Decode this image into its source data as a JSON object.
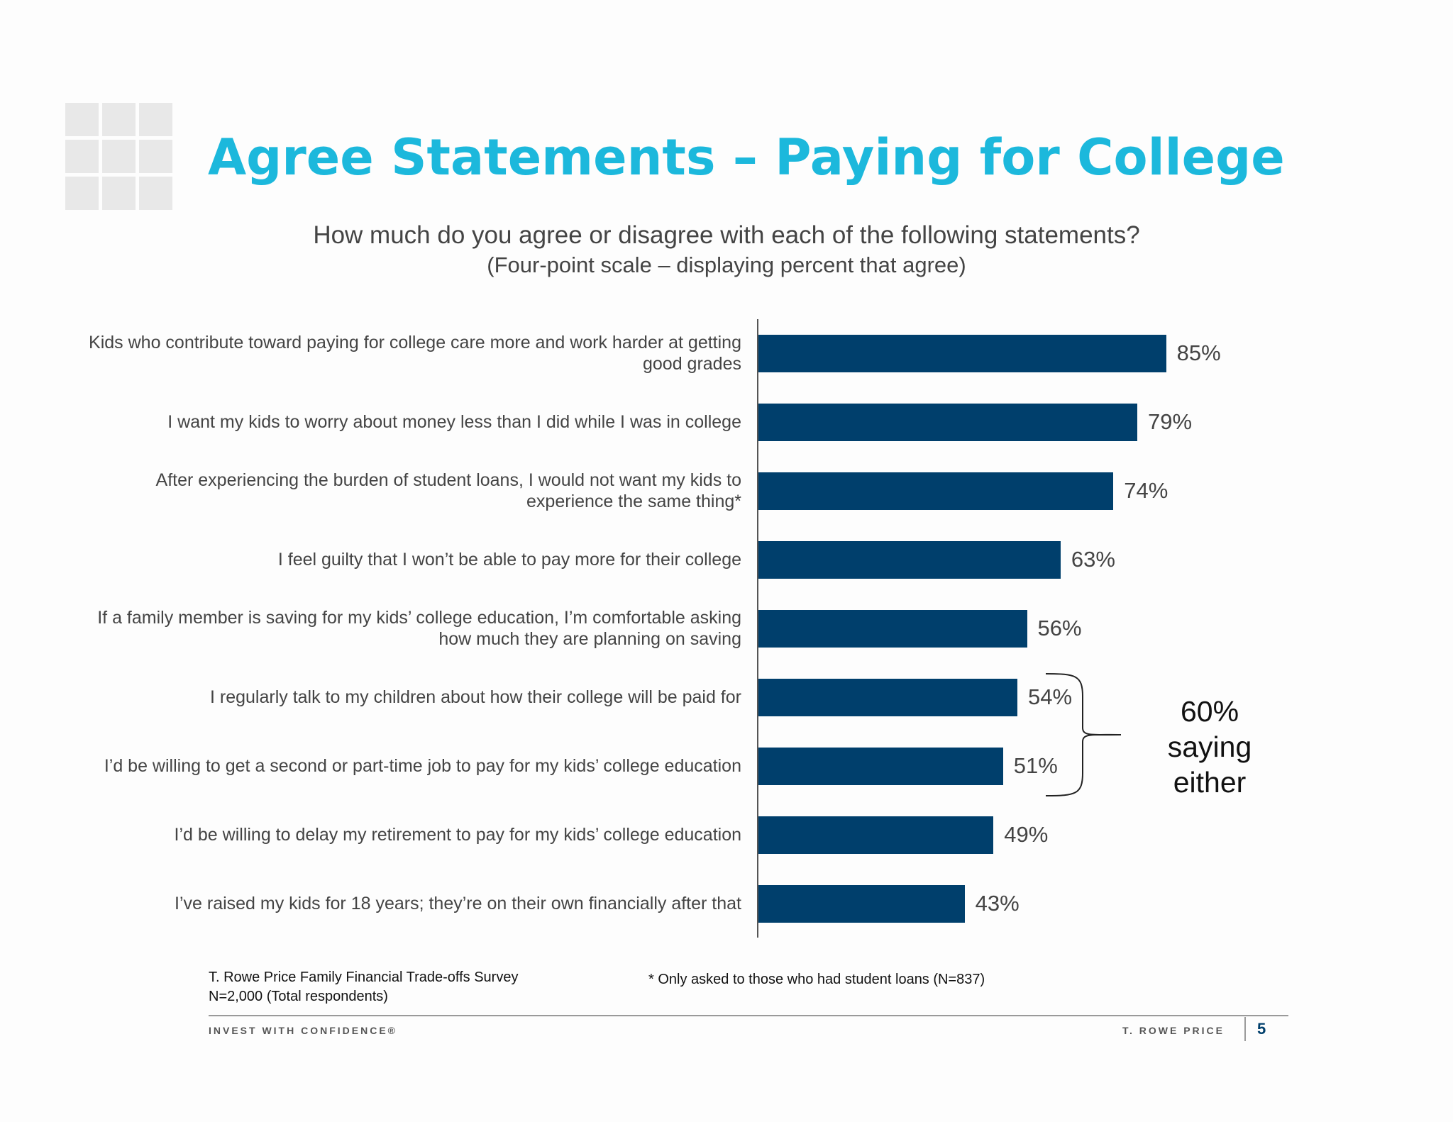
{
  "header": {
    "title": "Agree Statements – Paying for College",
    "question": "How much do you agree or disagree with each of the following statements?",
    "scale_note": "(Four-point scale – displaying percent that agree)"
  },
  "chart_data": {
    "type": "bar",
    "orientation": "horizontal",
    "categories": [
      "Kids who contribute toward paying for college care more and work harder at getting good grades",
      "I want my kids to worry about money less than I did while I was in college",
      "After experiencing the burden of student loans, I would not want my kids to experience the same thing*",
      "I feel guilty that I won’t be able to pay more for their college",
      "If a family member is saving for my kids’ college education, I’m comfortable asking how much they are planning on saving",
      "I regularly talk to my children about how their college will be paid for",
      "I’d be willing to get a second or part-time job to pay for my kids’ college education",
      "I’d be willing to delay my retirement to pay for my kids’ college education",
      "I’ve raised my kids for 18 years; they’re on their own financially after that"
    ],
    "values": [
      85,
      79,
      74,
      63,
      56,
      54,
      51,
      49,
      43
    ],
    "value_labels": [
      "85%",
      "79%",
      "74%",
      "63%",
      "56%",
      "54%",
      "51%",
      "49%",
      "43%"
    ],
    "unit": "%",
    "xlim": [
      0,
      100
    ],
    "grid": false,
    "legend": "none",
    "bar_color": "#003f6c",
    "annotation": {
      "text": "60% saying either",
      "spans_categories": [
        5,
        6
      ]
    }
  },
  "source": {
    "line1": "T. Rowe Price Family Financial Trade-offs Survey",
    "line2": "N=2,000 (Total respondents)"
  },
  "footnote": "* Only asked to those who had student loans (N=837)",
  "footer": {
    "tagline": "INVEST WITH CONFIDENCE®",
    "company": "T. ROWE PRICE",
    "page_number": "5"
  },
  "colors": {
    "title": "#1cb8dc",
    "bar": "#003f6c",
    "page_number": "#003f6c"
  }
}
